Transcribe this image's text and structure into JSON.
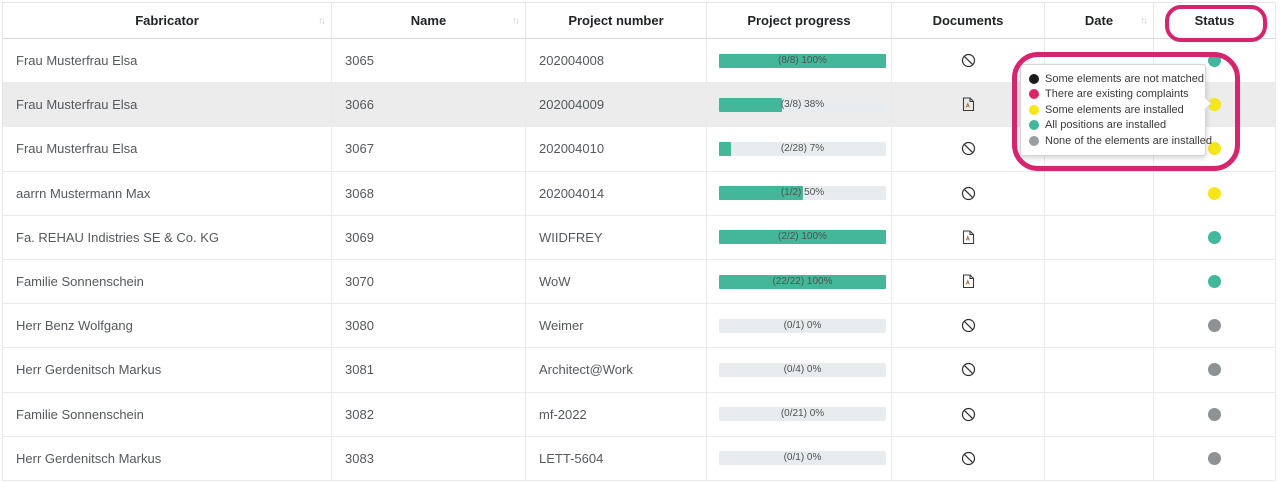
{
  "header": {
    "sort_icon": "↑↓",
    "columns": [
      {
        "label": "Fabricator",
        "sortable": true
      },
      {
        "label": "Name",
        "sortable": true
      },
      {
        "label": "Project number",
        "sortable": false
      },
      {
        "label": "Project progress",
        "sortable": false
      },
      {
        "label": "Documents",
        "sortable": false
      },
      {
        "label": "Date",
        "sortable": true
      },
      {
        "label": "Status",
        "sortable": true
      }
    ]
  },
  "rows": [
    {
      "fabricator": "Frau Musterfrau Elsa",
      "name": "3065",
      "project_number": "202004008",
      "progress_label": "(8/8) 100%",
      "progress_percent": 100,
      "document_icon": "none",
      "date": "",
      "status": "all_installed",
      "highlighted": false
    },
    {
      "fabricator": "Frau Musterfrau Elsa",
      "name": "3066",
      "project_number": "202004009",
      "progress_label": "(3/8) 38%",
      "progress_percent": 38,
      "document_icon": "pdf",
      "date": "",
      "status": "some_installed",
      "highlighted": true
    },
    {
      "fabricator": "Frau Musterfrau Elsa",
      "name": "3067",
      "project_number": "202004010",
      "progress_label": "(2/28) 7%",
      "progress_percent": 7,
      "document_icon": "none",
      "date": "",
      "status": "some_installed",
      "highlighted": false
    },
    {
      "fabricator": "aarrn Mustermann Max",
      "name": "3068",
      "project_number": "202004014",
      "progress_label": "(1/2) 50%",
      "progress_percent": 50,
      "document_icon": "none",
      "date": "",
      "status": "some_installed",
      "highlighted": false
    },
    {
      "fabricator": "Fa. REHAU Indistries SE & Co. KG",
      "name": "3069",
      "project_number": "WIIDFREY",
      "progress_label": "(2/2) 100%",
      "progress_percent": 100,
      "document_icon": "pdf",
      "date": "",
      "status": "all_installed",
      "highlighted": false
    },
    {
      "fabricator": "Familie Sonnenschein",
      "name": "3070",
      "project_number": "WoW",
      "progress_label": "(22/22) 100%",
      "progress_percent": 100,
      "document_icon": "pdf",
      "date": "",
      "status": "all_installed",
      "highlighted": false
    },
    {
      "fabricator": "Herr Benz Wolfgang",
      "name": "3080",
      "project_number": "Weimer",
      "progress_label": "(0/1) 0%",
      "progress_percent": 0,
      "document_icon": "none",
      "date": "",
      "status": "none_installed",
      "highlighted": false
    },
    {
      "fabricator": "Herr Gerdenitsch Markus",
      "name": "3081",
      "project_number": "Architect@Work",
      "progress_label": "(0/4) 0%",
      "progress_percent": 0,
      "document_icon": "none",
      "date": "",
      "status": "none_installed",
      "highlighted": false
    },
    {
      "fabricator": "Familie Sonnenschein",
      "name": "3082",
      "project_number": "mf-2022",
      "progress_label": "(0/21) 0%",
      "progress_percent": 0,
      "document_icon": "none",
      "date": "",
      "status": "none_installed",
      "highlighted": false
    },
    {
      "fabricator": "Herr Gerdenitsch Markus",
      "name": "3083",
      "project_number": "LETT-5604",
      "progress_label": "(0/1) 0%",
      "progress_percent": 0,
      "document_icon": "none",
      "date": "",
      "status": "none_installed",
      "highlighted": false
    }
  ],
  "legend_tooltip": {
    "items": [
      {
        "color": "#1b1b1b",
        "label": "Some elements are not matched"
      },
      {
        "color": "#e02366",
        "label": "There are existing complaints"
      },
      {
        "color": "#f5e617",
        "label": "Some elements are installed"
      },
      {
        "color": "#41b79b",
        "label": "All positions are installed"
      },
      {
        "color": "#9b9ea0",
        "label": "None of the elements are installed"
      }
    ]
  },
  "colors": {
    "progress_fill": "#44b79a",
    "progress_track": "#e9ecef",
    "annotation": "#d6256e",
    "status": {
      "all_installed": "#41b79b",
      "some_installed": "#f5e617",
      "none_installed": "#8e9295",
      "not_matched": "#1b1b1b",
      "complaints": "#e02366"
    }
  }
}
